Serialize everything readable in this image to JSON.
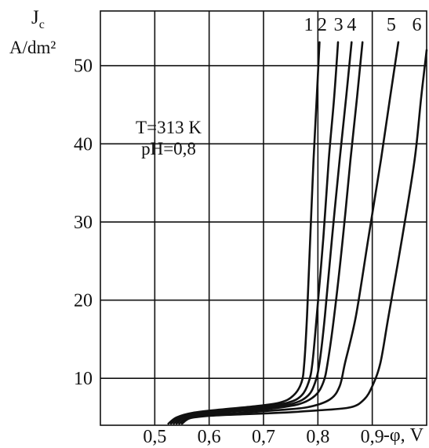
{
  "chart_data": {
    "type": "line",
    "ylabel": "J",
    "ylabel_sub": "c",
    "yunit": "A/dm²",
    "xlabel": "-φ, V",
    "annotation_lines": [
      "T=313 K",
      "pH=0,8"
    ],
    "xlim": [
      0.4,
      1.0
    ],
    "ylim": [
      4,
      57
    ],
    "grid": true,
    "x_ticks": [
      {
        "value": 0.5,
        "label": "0,5"
      },
      {
        "value": 0.6,
        "label": "0,6"
      },
      {
        "value": 0.7,
        "label": "0,7"
      },
      {
        "value": 0.8,
        "label": "0,8"
      },
      {
        "value": 0.9,
        "label": "0,9"
      }
    ],
    "y_ticks": [
      {
        "value": 10,
        "label": "10"
      },
      {
        "value": 20,
        "label": "20"
      },
      {
        "value": 30,
        "label": "30"
      },
      {
        "value": 40,
        "label": "40"
      },
      {
        "value": 50,
        "label": "50"
      }
    ],
    "series": [
      {
        "name": "1",
        "label_x": 0.783,
        "label_y": 54.5,
        "points": [
          [
            0.525,
            4.2
          ],
          [
            0.54,
            5.0
          ],
          [
            0.57,
            5.6
          ],
          [
            0.62,
            6.0
          ],
          [
            0.68,
            6.4
          ],
          [
            0.73,
            6.9
          ],
          [
            0.755,
            7.8
          ],
          [
            0.77,
            9.5
          ],
          [
            0.775,
            12
          ],
          [
            0.78,
            18
          ],
          [
            0.786,
            28
          ],
          [
            0.792,
            38
          ],
          [
            0.798,
            46
          ],
          [
            0.803,
            53
          ]
        ]
      },
      {
        "name": "2",
        "label_x": 0.808,
        "label_y": 54.5,
        "points": [
          [
            0.53,
            4.2
          ],
          [
            0.545,
            5.0
          ],
          [
            0.58,
            5.5
          ],
          [
            0.63,
            5.9
          ],
          [
            0.69,
            6.3
          ],
          [
            0.745,
            6.9
          ],
          [
            0.77,
            7.8
          ],
          [
            0.783,
            9.5
          ],
          [
            0.79,
            12
          ],
          [
            0.798,
            18
          ],
          [
            0.81,
            28
          ],
          [
            0.82,
            38
          ],
          [
            0.83,
            46
          ],
          [
            0.837,
            53
          ]
        ]
      },
      {
        "name": "3",
        "label_x": 0.838,
        "label_y": 54.5,
        "points": [
          [
            0.535,
            4.2
          ],
          [
            0.55,
            5.0
          ],
          [
            0.58,
            5.4
          ],
          [
            0.64,
            5.8
          ],
          [
            0.7,
            6.2
          ],
          [
            0.755,
            6.8
          ],
          [
            0.782,
            7.8
          ],
          [
            0.795,
            9.5
          ],
          [
            0.803,
            12
          ],
          [
            0.813,
            18
          ],
          [
            0.826,
            28
          ],
          [
            0.84,
            38
          ],
          [
            0.852,
            46
          ],
          [
            0.862,
            53
          ]
        ]
      },
      {
        "name": "4",
        "label_x": 0.862,
        "label_y": 54.5,
        "points": [
          [
            0.54,
            4.2
          ],
          [
            0.555,
            5.0
          ],
          [
            0.59,
            5.4
          ],
          [
            0.65,
            5.8
          ],
          [
            0.71,
            6.1
          ],
          [
            0.765,
            6.7
          ],
          [
            0.795,
            7.8
          ],
          [
            0.81,
            9.5
          ],
          [
            0.818,
            12
          ],
          [
            0.83,
            18
          ],
          [
            0.846,
            28
          ],
          [
            0.86,
            38
          ],
          [
            0.872,
            46
          ],
          [
            0.882,
            53
          ]
        ]
      },
      {
        "name": "5",
        "label_x": 0.935,
        "label_y": 54.5,
        "points": [
          [
            0.545,
            4.2
          ],
          [
            0.56,
            4.9
          ],
          [
            0.6,
            5.3
          ],
          [
            0.66,
            5.6
          ],
          [
            0.72,
            5.9
          ],
          [
            0.78,
            6.3
          ],
          [
            0.822,
            7.3
          ],
          [
            0.84,
            9.0
          ],
          [
            0.85,
            12
          ],
          [
            0.87,
            18
          ],
          [
            0.893,
            28
          ],
          [
            0.916,
            38
          ],
          [
            0.933,
            46
          ],
          [
            0.948,
            53
          ]
        ]
      },
      {
        "name": "6",
        "label_x": 0.982,
        "label_y": 54.5,
        "points": [
          [
            0.55,
            4.2
          ],
          [
            0.565,
            4.9
          ],
          [
            0.6,
            5.2
          ],
          [
            0.66,
            5.4
          ],
          [
            0.73,
            5.6
          ],
          [
            0.8,
            5.9
          ],
          [
            0.86,
            6.3
          ],
          [
            0.885,
            7.3
          ],
          [
            0.9,
            9.0
          ],
          [
            0.915,
            12
          ],
          [
            0.93,
            18
          ],
          [
            0.955,
            28
          ],
          [
            0.978,
            38
          ],
          [
            0.99,
            46
          ],
          [
            1.0,
            52
          ]
        ]
      }
    ]
  }
}
